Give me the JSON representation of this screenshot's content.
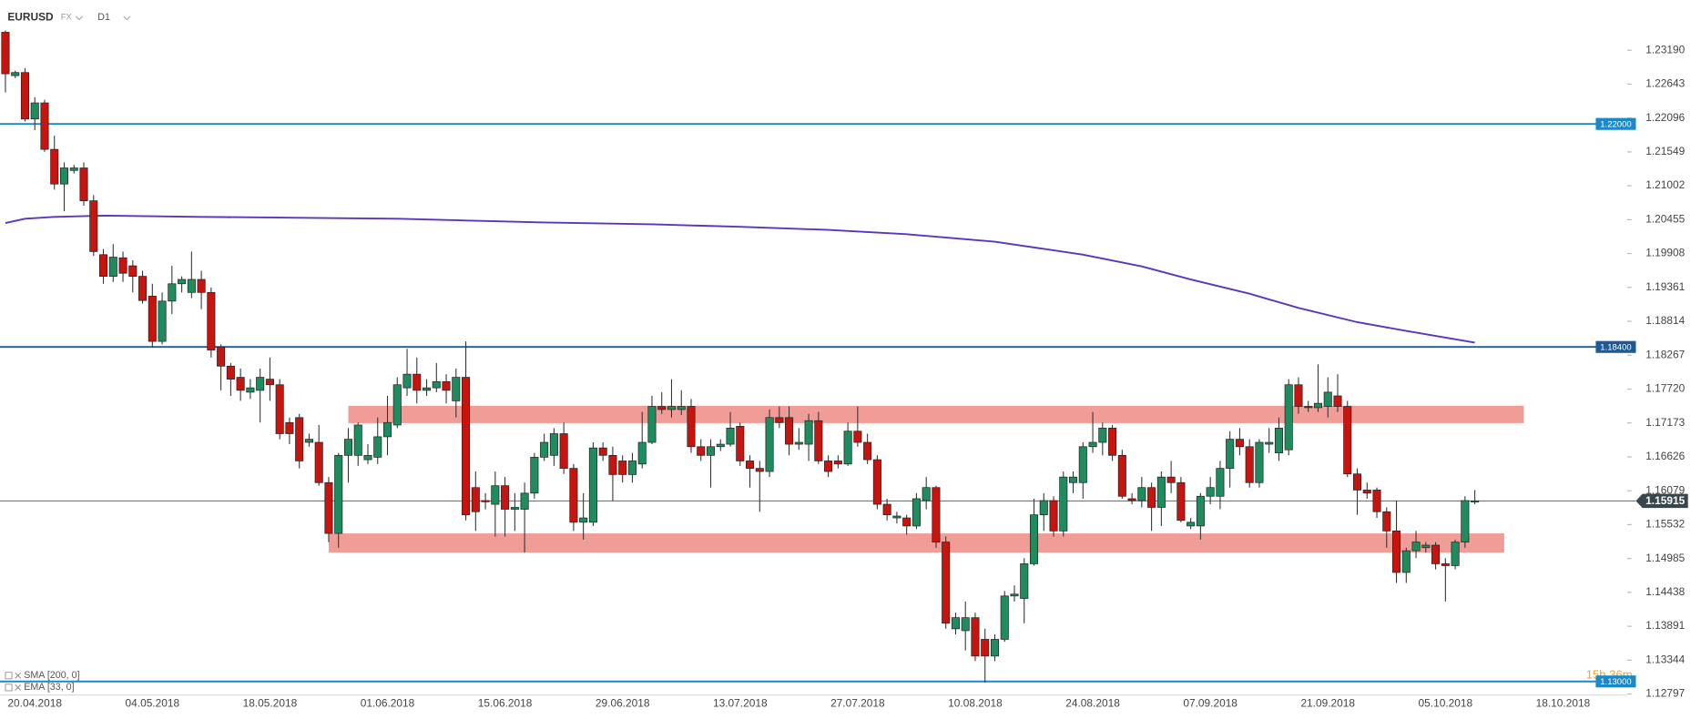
{
  "chart_data": {
    "type": "candlestick",
    "symbol": "EURUSD",
    "market": "FX",
    "timeframe": "D1",
    "timer": "15h 36m",
    "categories": [
      null,
      null,
      null,
      "20.04.2018",
      null,
      null,
      null,
      null,
      null,
      null,
      null,
      null,
      null,
      null,
      null,
      "04.05.2018",
      null,
      null,
      null,
      null,
      null,
      null,
      null,
      null,
      null,
      null,
      null,
      "18.05.2018",
      null,
      null,
      null,
      null,
      null,
      null,
      null,
      null,
      null,
      null,
      null,
      "01.06.2018",
      null,
      null,
      null,
      null,
      null,
      null,
      null,
      null,
      null,
      null,
      null,
      "15.06.2018",
      null,
      null,
      null,
      null,
      null,
      null,
      null,
      null,
      null,
      null,
      null,
      "29.06.2018",
      null,
      null,
      null,
      null,
      null,
      null,
      null,
      null,
      null,
      null,
      null,
      "13.07.2018",
      null,
      null,
      null,
      null,
      null,
      null,
      null,
      null,
      null,
      null,
      null,
      "27.07.2018",
      null,
      null,
      null,
      null,
      null,
      null,
      null,
      null,
      null,
      null,
      null,
      "10.08.2018",
      null,
      null,
      null,
      null,
      null,
      null,
      null,
      null,
      null,
      null,
      null,
      "24.08.2018",
      null,
      null,
      null,
      null,
      null,
      null,
      null,
      null,
      null,
      null,
      null,
      "07.09.2018",
      null,
      null,
      null,
      null,
      null,
      null,
      null,
      null,
      null,
      null,
      null,
      "21.09.2018",
      null,
      null,
      null,
      null,
      null,
      null,
      null,
      null,
      null,
      null,
      null,
      "05.10.2018",
      null,
      null,
      null,
      null,
      null,
      null,
      null,
      null,
      null,
      null,
      null,
      "18.10.2018"
    ],
    "open": [
      1.2348,
      1.2278,
      1.2283,
      1.2208,
      1.2234,
      1.2159,
      1.2103,
      1.2125,
      1.2129,
      1.2076,
      1.1989,
      1.1954,
      1.1984,
      1.1971,
      1.1954,
      1.1922,
      1.1849,
      1.1914,
      1.1942,
      1.1928,
      1.1949,
      1.1928,
      1.184,
      1.1809,
      1.1791,
      1.1767,
      1.177,
      1.1788,
      1.1779,
      1.1718,
      1.1726,
      1.1686,
      1.1686,
      1.1621,
      1.1539,
      1.1665,
      1.1665,
      1.1658,
      1.1662,
      1.1695,
      1.1714,
      1.1774,
      1.1796,
      1.177,
      1.1774,
      1.1784,
      1.1753,
      1.1791,
      1.1613,
      1.1592,
      1.1586,
      1.1616,
      1.1578,
      1.1578,
      1.1604,
      1.1662,
      1.1665,
      1.17,
      1.1644,
      1.1557,
      1.1557,
      1.1677,
      1.1665,
      1.1656,
      1.1634,
      1.1651,
      1.1686,
      1.1744,
      1.1739,
      1.1739,
      1.1744,
      1.1679,
      1.1665,
      1.1679,
      1.1683,
      1.1712,
      1.1656,
      1.1644,
      1.1639,
      1.1726,
      1.1726,
      1.1683,
      1.1683,
      1.1721,
      1.1656,
      1.1656,
      1.1651,
      1.1704,
      1.1686,
      1.1658,
      1.1586,
      1.1564,
      1.1564,
      1.1551,
      1.1592,
      1.1613,
      1.1525,
      1.1385,
      1.1382,
      1.1403,
      1.1368,
      1.1341,
      1.1368,
      1.1438,
      1.1434,
      1.149,
      1.1569,
      1.1592,
      1.1543,
      1.1621,
      1.1621,
      1.1679,
      1.1686,
      1.1709,
      1.1665,
      1.1595,
      1.1592,
      1.1613,
      1.1581,
      1.163,
      1.1621,
      1.1551,
      1.1551,
      1.1599,
      1.1599,
      1.1644,
      1.1691,
      1.1679,
      1.1621,
      1.1683,
      1.1669,
      1.1674,
      1.1779,
      1.1744,
      1.1742,
      1.1744,
      1.1761,
      1.1744,
      1.1635,
      1.1609,
      1.1609,
      1.1574,
      1.1543,
      1.1476,
      1.1511,
      1.1516,
      1.152,
      1.149,
      1.1487,
      1.1525,
      1.159,
      null,
      null,
      null,
      null,
      null,
      null,
      null,
      null,
      null
    ],
    "high": [
      1.2351,
      1.2286,
      1.229,
      1.2243,
      1.2239,
      1.2181,
      1.2138,
      1.2134,
      1.2138,
      1.2085,
      1.1998,
      1.2006,
      1.1994,
      1.198,
      1.1963,
      1.1942,
      1.1928,
      1.1971,
      1.1954,
      1.1994,
      1.1963,
      1.1936,
      1.1844,
      1.1814,
      1.1805,
      1.1788,
      1.1805,
      1.1823,
      1.1788,
      1.1726,
      1.1732,
      1.17,
      1.1714,
      1.163,
      1.1669,
      1.1709,
      1.1718,
      1.1683,
      1.1726,
      1.1761,
      1.1791,
      1.1837,
      1.1823,
      1.1788,
      1.1814,
      1.1796,
      1.1805,
      1.1849,
      1.1639,
      1.1604,
      1.1639,
      1.163,
      1.1604,
      1.1621,
      1.1669,
      1.17,
      1.1709,
      1.1718,
      1.1651,
      1.1604,
      1.1686,
      1.1686,
      1.1679,
      1.1665,
      1.1669,
      1.1735,
      1.1761,
      1.1767,
      1.1788,
      1.177,
      1.1756,
      1.1691,
      1.1691,
      1.1691,
      1.1735,
      1.1718,
      1.1665,
      1.1656,
      1.1739,
      1.1744,
      1.1744,
      1.1709,
      1.1732,
      1.1735,
      1.1665,
      1.1665,
      1.1718,
      1.1744,
      1.17,
      1.1665,
      1.1595,
      1.1574,
      1.1569,
      1.1604,
      1.163,
      1.1616,
      1.1534,
      1.1411,
      1.1429,
      1.1411,
      1.1385,
      1.1376,
      1.1446,
      1.1455,
      1.1499,
      1.1595,
      1.1604,
      1.1599,
      1.1639,
      1.1639,
      1.1686,
      1.1735,
      1.1718,
      1.1714,
      1.1674,
      1.1604,
      1.163,
      1.1621,
      1.1639,
      1.1656,
      1.163,
      1.1564,
      1.1604,
      1.163,
      1.1656,
      1.1704,
      1.1709,
      1.1691,
      1.1691,
      1.1709,
      1.1726,
      1.1788,
      1.1791,
      1.1753,
      1.1812,
      1.1791,
      1.1796,
      1.1753,
      1.1644,
      1.1621,
      1.1613,
      1.1581,
      1.1592,
      1.1516,
      1.1543,
      1.1525,
      1.1525,
      1.1499,
      1.1529,
      1.1599,
      1.1609,
      null,
      null,
      null,
      null,
      null,
      null,
      null,
      null,
      null
    ],
    "low": [
      1.2251,
      1.2274,
      1.2204,
      1.219,
      1.2155,
      1.2094,
      1.2059,
      1.212,
      1.2068,
      1.1987,
      1.1942,
      1.1945,
      1.1945,
      1.1928,
      1.191,
      1.184,
      1.1844,
      1.1893,
      1.1928,
      1.1919,
      1.1901,
      1.1823,
      1.177,
      1.1761,
      1.1753,
      1.1756,
      1.1718,
      1.1753,
      1.1691,
      1.1683,
      1.1644,
      1.1679,
      1.1616,
      1.1525,
      1.1516,
      1.1621,
      1.1648,
      1.1651,
      1.1651,
      1.1665,
      1.1709,
      1.1761,
      1.1749,
      1.1761,
      1.1767,
      1.1749,
      1.1726,
      1.156,
      1.1543,
      1.1578,
      1.1534,
      1.1534,
      1.1543,
      1.1508,
      1.1595,
      1.1656,
      1.1648,
      1.1635,
      1.1543,
      1.1529,
      1.1551,
      1.1656,
      1.1592,
      1.1621,
      1.1621,
      1.1644,
      1.1683,
      1.1732,
      1.1726,
      1.173,
      1.1669,
      1.1656,
      1.1613,
      1.1672,
      1.1679,
      1.1648,
      1.1613,
      1.1574,
      1.163,
      1.1709,
      1.1665,
      1.1674,
      1.1656,
      1.1651,
      1.163,
      1.1644,
      1.1648,
      1.1679,
      1.1651,
      1.1578,
      1.156,
      1.1555,
      1.1537,
      1.1546,
      1.1578,
      1.1516,
      1.1385,
      1.1376,
      1.135,
      1.1333,
      1.1298,
      1.1333,
      1.1364,
      1.1429,
      1.1394,
      1.1487,
      1.1543,
      1.1534,
      1.1534,
      1.1604,
      1.1595,
      1.1669,
      1.1665,
      1.1656,
      1.1595,
      1.1586,
      1.1581,
      1.1543,
      1.1551,
      1.1604,
      1.1557,
      1.1546,
      1.1529,
      1.1586,
      1.1578,
      1.1613,
      1.1665,
      1.1613,
      1.1613,
      1.1669,
      1.1656,
      1.1665,
      1.1732,
      1.1735,
      1.1735,
      1.1726,
      1.1735,
      1.163,
      1.1569,
      1.1595,
      1.1564,
      1.1516,
      1.1459,
      1.1459,
      1.1499,
      1.1508,
      1.1481,
      1.1429,
      1.1481,
      1.1516,
      1.1586,
      null,
      null,
      null,
      null,
      null,
      null,
      null,
      null,
      null
    ],
    "close": [
      1.2281,
      1.2283,
      1.2208,
      1.2234,
      1.2159,
      1.2103,
      1.2129,
      1.2129,
      1.2076,
      1.1994,
      1.1954,
      1.1985,
      1.1959,
      1.1954,
      1.1915,
      1.1849,
      1.1914,
      1.1942,
      1.1949,
      1.1949,
      1.1928,
      1.1835,
      1.1809,
      1.1788,
      1.177,
      1.1774,
      1.1791,
      1.1779,
      1.17,
      1.17,
      1.1656,
      1.1691,
      1.1621,
      1.1539,
      1.1665,
      1.1691,
      1.1714,
      1.1665,
      1.1695,
      1.1718,
      1.1779,
      1.1796,
      1.177,
      1.1774,
      1.1784,
      1.177,
      1.1791,
      1.1569,
      1.1574,
      1.159,
      1.1616,
      1.1578,
      1.1581,
      1.1604,
      1.1662,
      1.1686,
      1.17,
      1.1644,
      1.1557,
      1.1564,
      1.1677,
      1.1665,
      1.1634,
      1.1634,
      1.1656,
      1.1686,
      1.1744,
      1.1739,
      1.1744,
      1.1744,
      1.1679,
      1.1665,
      1.1679,
      1.1683,
      1.1709,
      1.1656,
      1.1644,
      1.1639,
      1.1726,
      1.1718,
      1.1683,
      1.1686,
      1.1721,
      1.1656,
      1.1639,
      1.1651,
      1.1704,
      1.1686,
      1.1658,
      1.1586,
      1.1569,
      1.1567,
      1.1551,
      1.1595,
      1.1613,
      1.1525,
      1.1394,
      1.1403,
      1.1403,
      1.1341,
      1.1341,
      1.1368,
      1.1438,
      1.1441,
      1.149,
      1.1569,
      1.1592,
      1.1543,
      1.163,
      1.163,
      1.1679,
      1.1686,
      1.1709,
      1.1665,
      1.1599,
      1.1592,
      1.1613,
      1.1581,
      1.163,
      1.1621,
      1.156,
      1.1557,
      1.1599,
      1.1613,
      1.1644,
      1.1691,
      1.1679,
      1.1621,
      1.1686,
      1.1686,
      1.1709,
      1.1779,
      1.1744,
      1.1742,
      1.1749,
      1.1767,
      1.1744,
      1.1635,
      1.1609,
      1.1604,
      1.1574,
      1.1543,
      1.1476,
      1.1511,
      1.1525,
      1.152,
      1.149,
      1.1487,
      1.1525,
      1.1592,
      1.15915,
      null,
      null,
      null,
      null,
      null,
      null,
      null,
      null,
      null
    ],
    "up_color": "#1e8c5f",
    "down_color": "#c8140f",
    "ylim": [
      1.1271,
      1.24
    ],
    "yticks": [
      {
        "value": 1.2319,
        "label": "1.23190"
      },
      1.22643,
      1.22096,
      1.21549,
      1.21002,
      1.20455,
      1.19908,
      1.19361,
      1.18814,
      1.18267,
      {
        "value": 1.1772,
        "label": "1.17720"
      },
      1.17173,
      1.16626,
      1.16079,
      1.15532,
      1.14985,
      1.14438,
      1.13891,
      1.13344,
      1.12797
    ],
    "indicators": [
      {
        "name": "SMA [200, 0]",
        "color": "#5b35c2",
        "x": [
          0,
          2,
          5,
          10,
          20,
          40,
          55,
          66,
          75,
          84,
          92,
          101,
          110,
          116,
          121,
          127,
          132,
          138,
          143,
          150
        ],
        "values": [
          1.204,
          1.2047,
          1.205,
          1.2052,
          1.205,
          1.2047,
          1.2041,
          1.2038,
          1.2034,
          1.2029,
          1.2022,
          1.201,
          1.1989,
          1.197,
          1.1949,
          1.1926,
          1.1903,
          1.188,
          1.1866,
          1.1847
        ]
      },
      {
        "name": "EMA [33, 0]"
      }
    ],
    "levels": [
      {
        "value": 1.22,
        "label": "1.22000",
        "color": "#1a88c9"
      },
      {
        "value": 1.184,
        "label": "1.18400",
        "color": "#1d5a96"
      },
      {
        "value": 1.13,
        "label": "1.13000",
        "color": "#1a88c9"
      }
    ],
    "zones": [
      {
        "from": 35,
        "to": 155,
        "ylow": 1.1717,
        "yhigh": 1.1745,
        "color": "#f19d97"
      },
      {
        "from": 33,
        "to": 153,
        "ylow": 1.1508,
        "yhigh": 1.1539,
        "color": "#f19d97"
      }
    ],
    "last_price": 1.15915
  }
}
